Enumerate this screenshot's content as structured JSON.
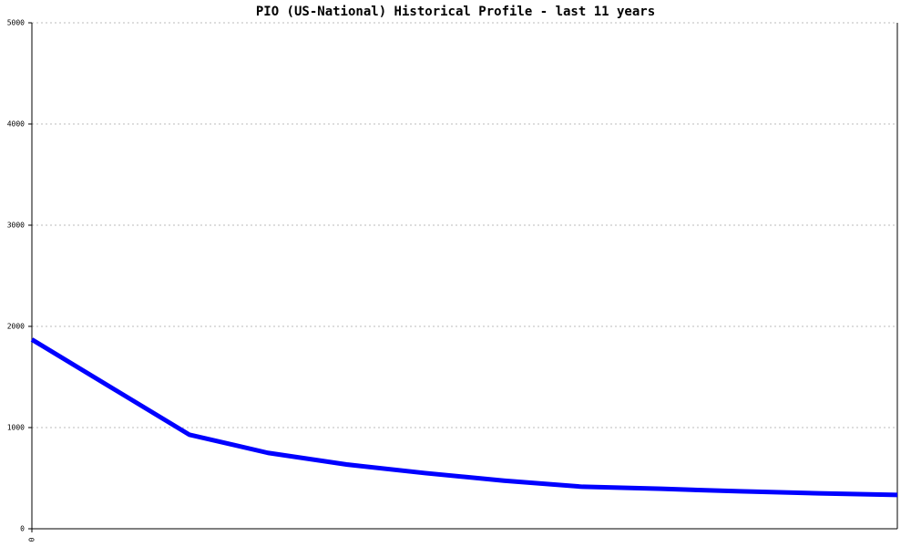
{
  "chart_data": {
    "type": "line",
    "title": "PIO (US-National) Historical Profile - last 11 years",
    "x": [
      0,
      1,
      2,
      3,
      4,
      5,
      6,
      7,
      8,
      9,
      10,
      11
    ],
    "series": [
      {
        "color": "#0000ff",
        "values": [
          1870,
          1400,
          930,
          750,
          635,
          550,
          475,
          415,
          395,
          370,
          350,
          335
        ]
      }
    ],
    "xlim": [
      0,
      11
    ],
    "xticks": [
      0
    ],
    "ylim": [
      0,
      5000
    ],
    "yticks": [
      0,
      1000,
      2000,
      3000,
      4000,
      5000
    ],
    "grid": true
  }
}
